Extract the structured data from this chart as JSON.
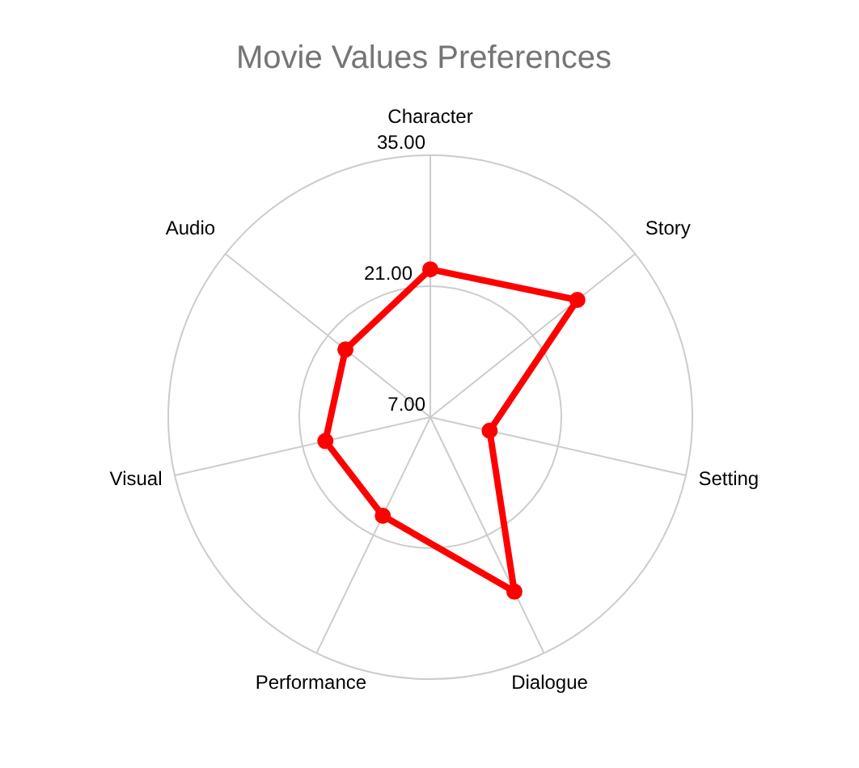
{
  "chart_data": {
    "type": "radar",
    "title": "Movie Values Preferences",
    "categories": [
      "Character",
      "Story",
      "Setting",
      "Dialogue",
      "Performance",
      "Visual",
      "Audio"
    ],
    "series": [
      {
        "color": "#ff0000",
        "values": [
          22.8,
          27.1,
          13.5,
          27.7,
          18.7,
          18.5,
          18.6
        ]
      }
    ],
    "ylim": [
      7,
      35
    ],
    "yticks": [
      {
        "value": 7,
        "label": "7.00"
      },
      {
        "value": 21,
        "label": "21.00"
      },
      {
        "value": 35,
        "label": "35.00"
      }
    ],
    "grid": true,
    "marker": "circle",
    "line_style": "solid"
  }
}
